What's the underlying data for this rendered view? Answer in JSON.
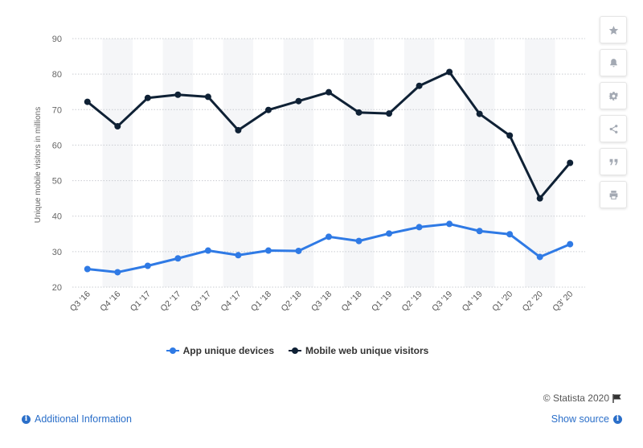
{
  "chart_data": {
    "type": "line",
    "categories": [
      "Q3 '16",
      "Q4 '16",
      "Q1 '17",
      "Q2 '17",
      "Q3 '17",
      "Q4 '17",
      "Q1 '18",
      "Q2 '18",
      "Q3 '18",
      "Q4 '18",
      "Q1 '19",
      "Q2 '19",
      "Q3 '19",
      "Q4 '19",
      "Q1 '20",
      "Q2 '20",
      "Q3' 20"
    ],
    "series": [
      {
        "name": "App unique devices",
        "color": "#2f7ae5",
        "values": [
          25.1,
          24.2,
          26.0,
          28.1,
          30.3,
          29.0,
          30.3,
          30.2,
          34.2,
          33.0,
          35.1,
          36.9,
          37.8,
          35.8,
          34.9,
          28.5,
          32.1
        ]
      },
      {
        "name": "Mobile web unique visitors",
        "color": "#0f2135",
        "values": [
          72.2,
          65.3,
          73.3,
          74.2,
          73.6,
          64.2,
          69.9,
          72.4,
          74.9,
          69.2,
          68.9,
          76.7,
          80.6,
          68.8,
          62.7,
          45.0,
          55.0
        ]
      }
    ],
    "title": "",
    "xlabel": "",
    "ylabel": "Unique mobile visitors in millions",
    "ylim": [
      20,
      90
    ],
    "yticks": [
      20,
      30,
      40,
      50,
      60,
      70,
      80,
      90
    ],
    "grid": true,
    "legend_position": "bottom-center"
  },
  "toolbar": {
    "icons": [
      "star-icon",
      "bell-icon",
      "gear-icon",
      "share-icon",
      "quote-icon",
      "print-icon"
    ]
  },
  "footer": {
    "credits": "© Statista 2020",
    "additional_info": "Additional Information",
    "show_source": "Show source"
  }
}
